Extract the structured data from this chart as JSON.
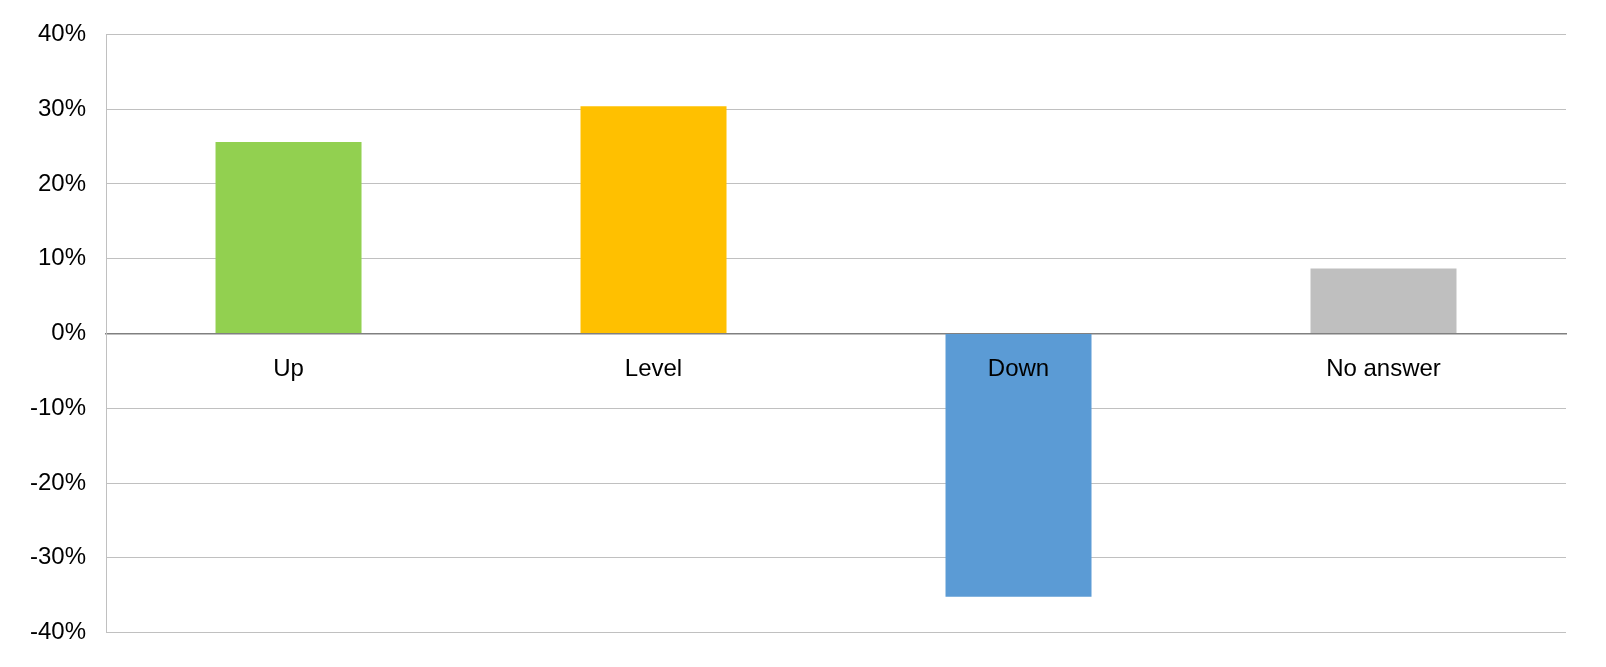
{
  "chart_data": {
    "type": "bar",
    "categories": [
      "Up",
      "Level",
      "Down",
      "No answer"
    ],
    "values": [
      25.6,
      30.4,
      -35.2,
      8.7
    ],
    "colors": [
      "#92d050",
      "#ffc000",
      "#5b9bd5",
      "#bfbfbf"
    ],
    "ylim": [
      -40,
      40
    ],
    "yticks": [
      {
        "value": -40,
        "label": "-40%"
      },
      {
        "value": -30,
        "label": "-30%"
      },
      {
        "value": -20,
        "label": "-20%"
      },
      {
        "value": -10,
        "label": "-10%"
      },
      {
        "value": 0,
        "label": "0%"
      },
      {
        "value": 10,
        "label": "10%"
      },
      {
        "value": 20,
        "label": "20%"
      },
      {
        "value": 30,
        "label": "30%"
      },
      {
        "value": 40,
        "label": "40%"
      }
    ],
    "grid": "y",
    "legend": false
  }
}
